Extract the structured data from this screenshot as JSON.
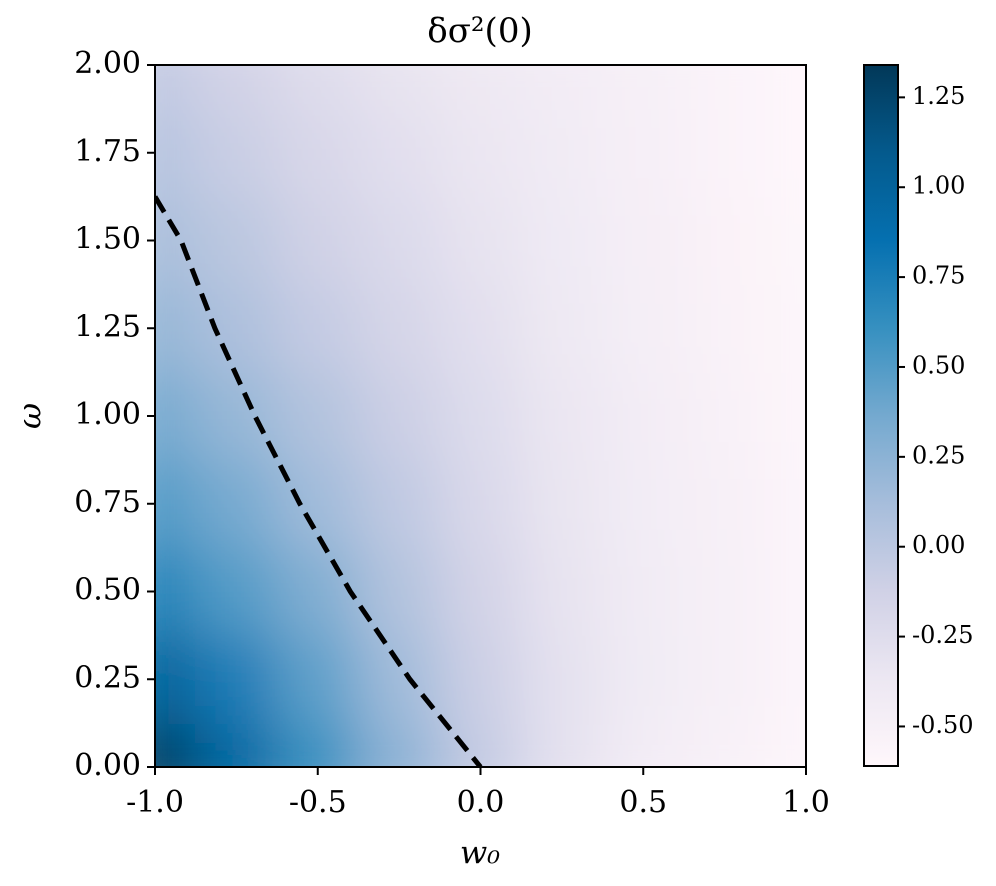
{
  "chart_data": {
    "type": "heatmap",
    "title": "δσ²(0)",
    "x_label": "w₀",
    "y_label": "ω",
    "x": [
      -1,
      -0.75,
      -0.5,
      -0.25,
      0,
      0.25,
      0.5,
      0.75,
      1
    ],
    "y": [
      0,
      0.25,
      0.5,
      0.75,
      1,
      1.25,
      1.5,
      1.75,
      2
    ],
    "values": [
      [
        1.3,
        0.95,
        0.6,
        0.25,
        -0.05,
        -0.3,
        -0.45,
        -0.52,
        -0.58
      ],
      [
        1.0,
        0.75,
        0.45,
        0.15,
        -0.1,
        -0.3,
        -0.42,
        -0.5,
        -0.57
      ],
      [
        0.7,
        0.5,
        0.3,
        0.05,
        -0.15,
        -0.32,
        -0.43,
        -0.5,
        -0.57
      ],
      [
        0.5,
        0.35,
        0.15,
        -0.03,
        -0.2,
        -0.34,
        -0.44,
        -0.51,
        -0.57
      ],
      [
        0.35,
        0.2,
        0.05,
        -0.1,
        -0.24,
        -0.36,
        -0.45,
        -0.52,
        -0.58
      ],
      [
        0.2,
        0.08,
        -0.05,
        -0.17,
        -0.28,
        -0.39,
        -0.47,
        -0.53,
        -0.58
      ],
      [
        0.1,
        0,
        -0.12,
        -0.22,
        -0.32,
        -0.41,
        -0.48,
        -0.54,
        -0.59
      ],
      [
        0.02,
        -0.08,
        -0.19,
        -0.28,
        -0.36,
        -0.43,
        -0.49,
        -0.55,
        -0.6
      ],
      [
        -0.05,
        -0.15,
        -0.25,
        -0.33,
        -0.4,
        -0.45,
        -0.5,
        -0.55,
        -0.6
      ]
    ],
    "xlim": [
      -1,
      1
    ],
    "ylim": [
      0,
      2
    ],
    "xticks": [
      {
        "value": -1,
        "label": "-1.0"
      },
      {
        "value": -0.5,
        "label": "-0.5"
      },
      {
        "value": 0,
        "label": "0.0"
      },
      {
        "value": 0.5,
        "label": "0.5"
      },
      {
        "value": 1,
        "label": "1.0"
      }
    ],
    "yticks": [
      {
        "value": 0,
        "label": "0.00"
      },
      {
        "value": 0.25,
        "label": "0.25"
      },
      {
        "value": 0.5,
        "label": "0.50"
      },
      {
        "value": 0.75,
        "label": "0.75"
      },
      {
        "value": 1,
        "label": "1.00"
      },
      {
        "value": 1.25,
        "label": "1.25"
      },
      {
        "value": 1.5,
        "label": "1.50"
      },
      {
        "value": 1.75,
        "label": "1.75"
      },
      {
        "value": 2,
        "label": "2.00"
      }
    ],
    "colormap": [
      "#fff7fb",
      "#ece7f2",
      "#d0d1e6",
      "#a6bddb",
      "#74a9cf",
      "#3690c0",
      "#0570b0",
      "#045a8d",
      "#023858"
    ],
    "clim": [
      -0.61,
      1.34
    ],
    "cticks": [
      {
        "value": -0.5,
        "label": "-0.50"
      },
      {
        "value": -0.25,
        "label": "-0.25"
      },
      {
        "value": 0,
        "label": "0.00"
      },
      {
        "value": 0.25,
        "label": "0.25"
      },
      {
        "value": 0.5,
        "label": "0.50"
      },
      {
        "value": 0.75,
        "label": "0.75"
      },
      {
        "value": 1,
        "label": "1.00"
      },
      {
        "value": 1.25,
        "label": "1.25"
      }
    ],
    "contour": {
      "color": "#000000",
      "dashed": true,
      "x": [
        -1,
        -0.92,
        -0.816,
        -0.693,
        -0.555,
        -0.4,
        -0.217,
        0
      ],
      "y": [
        1.625,
        1.5,
        1.25,
        1.0,
        0.75,
        0.5,
        0.25,
        0
      ]
    }
  }
}
